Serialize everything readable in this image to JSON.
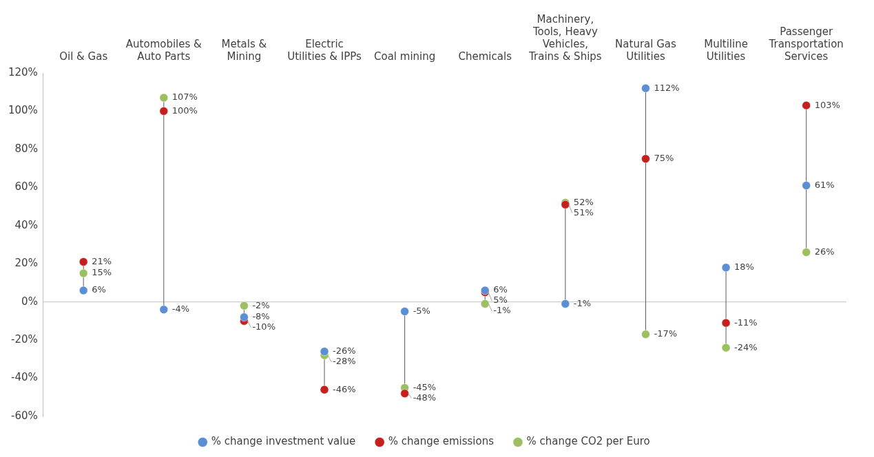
{
  "chart_data": {
    "type": "scatter",
    "categories": [
      "Oil & Gas",
      "Automobiles & Auto Parts",
      "Metals & Mining",
      "Electric Utilities & IPPs",
      "Coal mining",
      "Chemicals",
      "Machinery, Tools, Heavy Vehicles, Trains & Ships",
      "Natural Gas Utilities",
      "Multiline Utilities",
      "Passenger Transportation Services"
    ],
    "series": [
      {
        "name": "% change investment value",
        "color": "#5b8fd4",
        "values": [
          6,
          -4,
          -8,
          -26,
          -5,
          6,
          -1,
          112,
          18,
          61
        ],
        "value_labels": [
          "6%",
          "-4%",
          "-8%",
          "-26%",
          "-5%",
          "6%",
          "-1%",
          "112%",
          "18%",
          "61%"
        ]
      },
      {
        "name": "% change emissions",
        "color": "#c3201e",
        "values": [
          21,
          100,
          -10,
          -46,
          -48,
          5,
          51,
          75,
          -11,
          103
        ],
        "value_labels": [
          "21%",
          "100%",
          "-10%",
          "-46%",
          "-48%",
          "5%",
          "51%",
          "75%",
          "-11%",
          "103%"
        ]
      },
      {
        "name": "% change CO2 per Euro",
        "color": "#9cc061",
        "values": [
          15,
          107,
          -2,
          -28,
          -45,
          -1,
          52,
          -17,
          -24,
          26
        ],
        "value_labels": [
          "15%",
          "107%",
          "-2%",
          "-28%",
          "-45%",
          "-1%",
          "52%",
          "-17%",
          "-24%",
          "26%"
        ]
      }
    ],
    "ylim": [
      -60,
      120
    ],
    "yticks": [
      {
        "value": -60,
        "label": "-60%"
      },
      {
        "value": -40,
        "label": "-40%"
      },
      {
        "value": -20,
        "label": "-20%"
      },
      {
        "value": 0,
        "label": "0%"
      },
      {
        "value": 20,
        "label": "20%"
      },
      {
        "value": 40,
        "label": "40%"
      },
      {
        "value": 60,
        "label": "60%"
      },
      {
        "value": 80,
        "label": "80%"
      },
      {
        "value": 100,
        "label": "100%"
      },
      {
        "value": 120,
        "label": "120%"
      }
    ],
    "ref_lines": [
      {
        "axis": "y",
        "value": 0,
        "color": "#bfbfbf"
      }
    ],
    "grid": false,
    "legend": "bottom",
    "marker": "circle"
  }
}
